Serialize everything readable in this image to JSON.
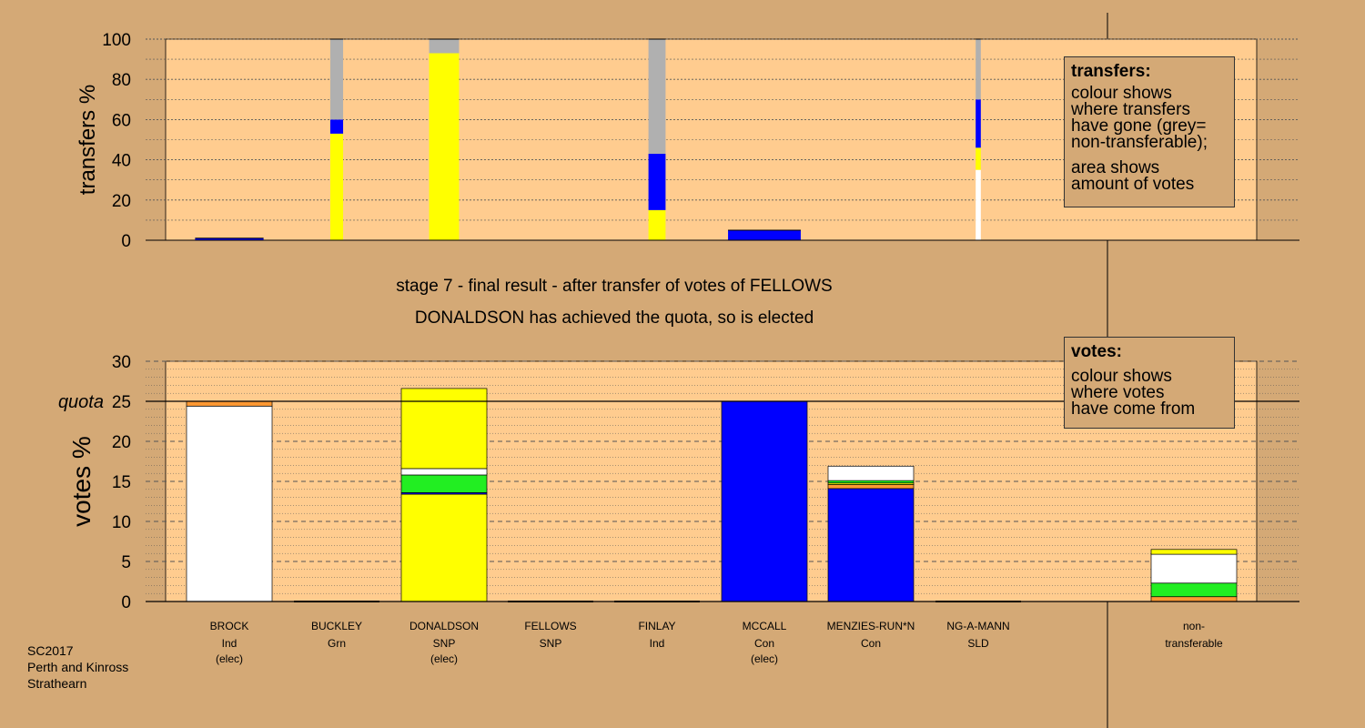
{
  "header": {
    "stage_line": "stage 7 - final result - after transfer of votes of FELLOWS",
    "elected_line": "DONALDSON has achieved the quota, so is elected"
  },
  "legend_transfers": {
    "title": "transfers:",
    "lines": [
      "colour shows",
      "where transfers",
      "have gone (grey=",
      "non-transferable);",
      "area shows",
      "amount of votes"
    ]
  },
  "legend_votes": {
    "title": "votes:",
    "lines": [
      "colour shows",
      "where votes",
      "have come from"
    ]
  },
  "footer": {
    "lines": [
      "SC2017",
      "Perth and Kinross",
      "Strathearn"
    ]
  },
  "colors": {
    "background": "#D4A976",
    "plot_background": "#FFCC8F",
    "white": "#FFFFFF",
    "yellow": "#FFFF00",
    "blue": "#0000FF",
    "green": "#22EE22",
    "orange": "#FF9933",
    "grey": "#B0B0B0"
  },
  "chart_data": [
    {
      "type": "bar",
      "stacked": true,
      "panel": "transfers",
      "ylabel": "transfers %",
      "ylim": [
        0,
        100
      ],
      "yticks": [
        0,
        20,
        40,
        60,
        80,
        100
      ],
      "categories": [
        "BROCK",
        "BUCKLEY",
        "DONALDSON",
        "FELLOWS",
        "FINLAY",
        "MCCALL",
        "MENZIES-RUN*N",
        "NG-A-MANN"
      ],
      "bars": [
        {
          "category": "BROCK",
          "width_share": 0.8,
          "segments": [
            {
              "color": "blue",
              "value": 1
            }
          ]
        },
        {
          "category": "BUCKLEY",
          "width_share": 0.15,
          "segments": [
            {
              "color": "yellow",
              "value": 53
            },
            {
              "color": "blue",
              "value": 7
            },
            {
              "color": "grey",
              "value": 40
            }
          ]
        },
        {
          "category": "DONALDSON",
          "width_share": 0.35,
          "segments": [
            {
              "color": "yellow",
              "value": 93
            },
            {
              "color": "grey",
              "value": 7
            }
          ]
        },
        {
          "category": "FELLOWS",
          "width_share": 0,
          "segments": []
        },
        {
          "category": "FINLAY",
          "width_share": 0.2,
          "segments": [
            {
              "color": "yellow",
              "value": 15
            },
            {
              "color": "blue",
              "value": 28
            },
            {
              "color": "grey",
              "value": 57
            }
          ]
        },
        {
          "category": "MCCALL",
          "width_share": 0.85,
          "segments": [
            {
              "color": "blue",
              "value": 5
            }
          ]
        },
        {
          "category": "MENZIES-RUN*N",
          "width_share": 0,
          "segments": []
        },
        {
          "category": "NG-A-MANN",
          "width_share": 0.06,
          "segments": [
            {
              "color": "white",
              "value": 35
            },
            {
              "color": "yellow",
              "value": 11
            },
            {
              "color": "blue",
              "value": 24
            },
            {
              "color": "grey",
              "value": 30
            }
          ]
        }
      ]
    },
    {
      "type": "bar",
      "stacked": true,
      "panel": "votes",
      "ylabel": "votes %",
      "ylim": [
        0,
        30
      ],
      "yticks": [
        0,
        5,
        10,
        15,
        20,
        25,
        30
      ],
      "quota": 25,
      "quota_label": "quota",
      "categories": [
        "BROCK",
        "BUCKLEY",
        "DONALDSON",
        "FELLOWS",
        "FINLAY",
        "MCCALL",
        "MENZIES-RUN*N",
        "NG-A-MANN",
        "non-transferable"
      ],
      "candidates": [
        {
          "name": "BROCK",
          "party": "Ind",
          "status": "(elec)",
          "segments": [
            {
              "color": "white",
              "value": 24.4
            },
            {
              "color": "orange",
              "value": 0.6
            }
          ]
        },
        {
          "name": "BUCKLEY",
          "party": "Grn",
          "status": "",
          "segments": []
        },
        {
          "name": "DONALDSON",
          "party": "SNP",
          "status": "(elec)",
          "segments": [
            {
              "color": "yellow",
              "value": 13.4
            },
            {
              "color": "blue",
              "value": 0.2
            },
            {
              "color": "green",
              "value": 2.2
            },
            {
              "color": "white",
              "value": 0.8
            },
            {
              "color": "yellow",
              "value": 10.0
            }
          ]
        },
        {
          "name": "FELLOWS",
          "party": "SNP",
          "status": "",
          "segments": []
        },
        {
          "name": "FINLAY",
          "party": "Ind",
          "status": "",
          "segments": []
        },
        {
          "name": "MCCALL",
          "party": "Con",
          "status": "(elec)",
          "segments": [
            {
              "color": "blue",
              "value": 25.0
            }
          ]
        },
        {
          "name": "MENZIES-RUN*N",
          "party": "Con",
          "status": "",
          "segments": [
            {
              "color": "blue",
              "value": 14.1
            },
            {
              "color": "orange",
              "value": 0.5
            },
            {
              "color": "yellow",
              "value": 0.2
            },
            {
              "color": "green",
              "value": 0.3
            },
            {
              "color": "white",
              "value": 1.8
            }
          ]
        },
        {
          "name": "NG-A-MANN",
          "party": "SLD",
          "status": "",
          "segments": []
        },
        {
          "name": "non-",
          "party": "transferable",
          "status": "",
          "segments": [
            {
              "color": "orange",
              "value": 0.6
            },
            {
              "color": "green",
              "value": 1.7
            },
            {
              "color": "white",
              "value": 3.6
            },
            {
              "color": "yellow",
              "value": 0.6
            }
          ]
        }
      ]
    }
  ]
}
